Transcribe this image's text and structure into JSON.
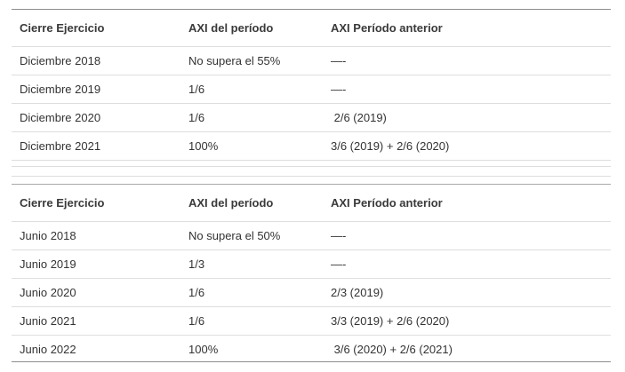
{
  "table1": {
    "headers": [
      "Cierre Ejercicio",
      "AXI del período",
      "AXI Período anterior"
    ],
    "rows": [
      [
        "Diciembre 2018",
        "No supera el 55%",
        "—-"
      ],
      [
        "Diciembre 2019",
        "1/6",
        "—-"
      ],
      [
        "Diciembre 2020",
        "1/6",
        " 2/6 (2019)"
      ],
      [
        "Diciembre 2021",
        "100%",
        "3/6 (2019) + 2/6 (2020)"
      ]
    ]
  },
  "table2": {
    "headers": [
      "Cierre Ejercicio",
      "AXI del período",
      "AXI Período anterior"
    ],
    "rows": [
      [
        "Junio 2018",
        "No supera el 50%",
        "—-"
      ],
      [
        "Junio 2019",
        "1/3",
        "—-"
      ],
      [
        "Junio 2020",
        "1/6",
        "2/3 (2019)"
      ],
      [
        "Junio 2021",
        "1/6",
        "3/3 (2019) + 2/6 (2020)"
      ],
      [
        "Junio 2022",
        "100%",
        " 3/6 (2020) + 2/6 (2021)"
      ]
    ]
  }
}
